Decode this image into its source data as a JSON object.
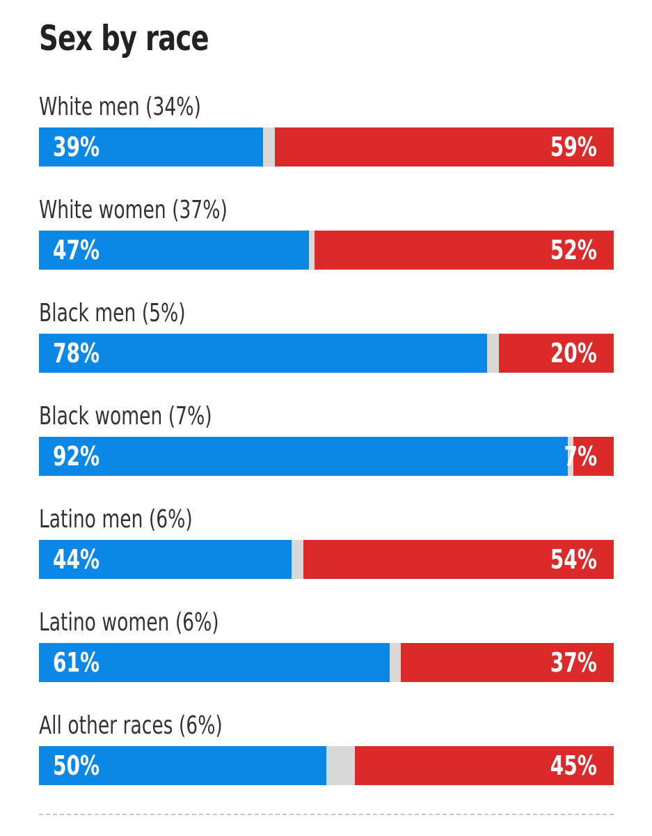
{
  "chart_data": {
    "type": "bar",
    "orientation": "horizontal-stacked",
    "title": "Sex by race",
    "categories": [
      "White men (34%)",
      "White women (37%)",
      "Black men (5%)",
      "Black women (7%)",
      "Latino men (6%)",
      "Latino women (6%)",
      "All other races (6%)"
    ],
    "series": [
      {
        "color": "#0b87e6",
        "values": [
          39,
          47,
          78,
          92,
          44,
          61,
          50
        ]
      },
      {
        "color": "#dc2a2a",
        "values": [
          59,
          52,
          20,
          7,
          54,
          37,
          45
        ]
      }
    ],
    "value_labels": [
      [
        "39%",
        "59%"
      ],
      [
        "47%",
        "52%"
      ],
      [
        "78%",
        "20%"
      ],
      [
        "92%",
        "7%"
      ],
      [
        "44%",
        "54%"
      ],
      [
        "61%",
        "37%"
      ],
      [
        "50%",
        "45%"
      ]
    ],
    "xlim": [
      0,
      100
    ],
    "remainder_color": "#d8d8d8",
    "grid": false
  }
}
